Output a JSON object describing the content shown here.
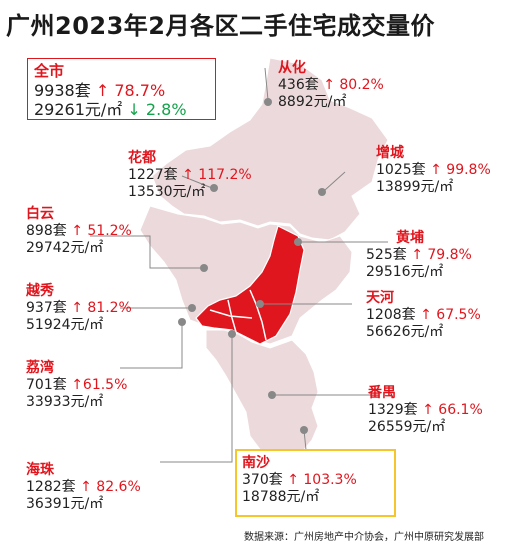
{
  "title": "广州2023年2月各区二手住宅成交量价",
  "source": "数据来源：广州房地产中介协会，广州中原研究发展部",
  "units": {
    "set": "套",
    "price": "元/㎡"
  },
  "total": {
    "name": "全市",
    "volume": "9938",
    "volume_change": "78.7%",
    "volume_dir": "up",
    "price": "29261",
    "price_change": "2.8%",
    "price_dir": "down"
  },
  "districts": [
    {
      "key": "conghua",
      "name": "从化",
      "volume": "436",
      "volume_change": "80.2%",
      "price": "8892"
    },
    {
      "key": "huadu",
      "name": "花都",
      "volume": "1227",
      "volume_change": "117.2%",
      "price": "13530"
    },
    {
      "key": "zengcheng",
      "name": "增城",
      "volume": "1025",
      "volume_change": "99.8%",
      "price": "13899"
    },
    {
      "key": "baiyun",
      "name": "白云",
      "volume": "898",
      "volume_change": "51.2%",
      "price": "29742"
    },
    {
      "key": "huangpu",
      "name": "黄埔",
      "volume": "525",
      "volume_change": "79.8%",
      "price": "29516"
    },
    {
      "key": "yuexiu",
      "name": "越秀",
      "volume": "937",
      "volume_change": "81.2%",
      "price": "51924"
    },
    {
      "key": "tianhe",
      "name": "天河",
      "volume": "1208",
      "volume_change": "67.5%",
      "price": "56626"
    },
    {
      "key": "liwan",
      "name": "荔湾",
      "volume": "701",
      "volume_change": "61.5%",
      "price": "33933"
    },
    {
      "key": "panyu",
      "name": "番禺",
      "volume": "1329",
      "volume_change": "66.1%",
      "price": "26559"
    },
    {
      "key": "haizhu",
      "name": "海珠",
      "volume": "1282",
      "volume_change": "82.6%",
      "price": "36391"
    },
    {
      "key": "nansha",
      "name": "南沙",
      "volume": "370",
      "volume_change": "103.3%",
      "price": "18788"
    }
  ],
  "colors": {
    "accent": "#e0161e",
    "up": "#e0161e",
    "down": "#13a34a",
    "map_fill": "#ecd9db",
    "map_highlight": "#e0161e",
    "highlight_box": "#f5c52a"
  },
  "icons": {
    "up": "arrow-up-icon",
    "down": "arrow-down-icon"
  }
}
